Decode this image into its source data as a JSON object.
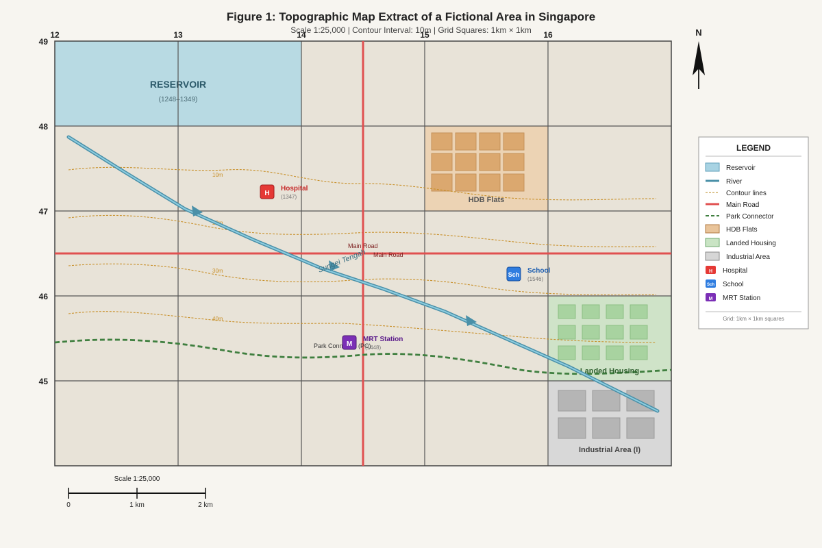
{
  "figure": {
    "title": "Figure 1: Topographic Map Extract of a Fictional Area in Singapore",
    "subtitle": "Scale 1:25,000 | Contour Interval: 10m | Grid Squares: 1km × 1km"
  },
  "grid": {
    "eastings": [
      "12",
      "13",
      "14",
      "15",
      "16"
    ],
    "northings": [
      "49",
      "48",
      "47",
      "46",
      "45"
    ]
  },
  "north_arrow": {
    "label": "N"
  },
  "features": {
    "reservoir": {
      "name": "RESERVOIR",
      "ref": "(1248–1349)"
    },
    "hdb": {
      "name": "HDB Flats"
    },
    "landed": {
      "name": "Landed Housing"
    },
    "industrial": {
      "name": "Industrial Area (I)"
    },
    "river": {
      "name": "Sungei Tengah"
    },
    "main_road": {
      "label_1": "Main Road",
      "label_2": "Main Road"
    },
    "park_connector": {
      "name": "Park Connector (PC)"
    },
    "contours": [
      "10m",
      "20m",
      "30m",
      "40m"
    ]
  },
  "pois": {
    "hospital": {
      "symbol": "H",
      "name": "Hospital",
      "ref": "(1347)"
    },
    "school": {
      "symbol": "Sch",
      "name": "School",
      "ref": "(1546)"
    },
    "mrt": {
      "symbol": "M",
      "name": "MRT Station",
      "ref": "(1448)"
    }
  },
  "legend": {
    "title": "LEGEND",
    "items": [
      {
        "label": "Reservoir",
        "kind": "box",
        "fill": "#a8d3e3",
        "stroke": "#5f9fb8"
      },
      {
        "label": "River",
        "kind": "line",
        "color": "#4a90a8"
      },
      {
        "label": "Contour lines",
        "kind": "dash",
        "color": "#c8a04a"
      },
      {
        "label": "Main Road",
        "kind": "line",
        "color": "#e05050"
      },
      {
        "label": "Park Connector",
        "kind": "dash",
        "color": "#3f7f3f"
      },
      {
        "label": "HDB Flats",
        "kind": "box",
        "fill": "#e9c49a",
        "stroke": "#b07840"
      },
      {
        "label": "Landed Housing",
        "kind": "box",
        "fill": "#c9e4c4",
        "stroke": "#6fa86f"
      },
      {
        "label": "Industrial Area",
        "kind": "box",
        "fill": "#d6d6d6",
        "stroke": "#888"
      },
      {
        "label": "Hospital",
        "kind": "icon",
        "symbol": "H",
        "fill": "#e53935"
      },
      {
        "label": "School",
        "kind": "icon",
        "symbol": "Sch",
        "fill": "#2f7de0"
      },
      {
        "label": "MRT Station",
        "kind": "icon",
        "symbol": "M",
        "fill": "#7b2fb6"
      }
    ],
    "footnote": "Grid: 1km × 1km squares"
  },
  "scale_bar": {
    "title": "Scale 1:25,000",
    "labels": [
      "0",
      "1 km",
      "2 km"
    ]
  },
  "colors": {
    "land": "#e8e3d8",
    "grid": "#555555",
    "river": "#5aa5c0",
    "road": "#e05050",
    "contour": "#c8902a",
    "park_connector": "#3f7f3f"
  }
}
